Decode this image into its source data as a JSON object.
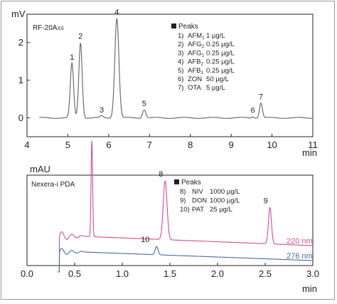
{
  "chart_data": [
    {
      "type": "line",
      "detector": "RF-20A",
      "detector_subscript": "XS",
      "ylabel": "mV",
      "xlabel": "min",
      "xlim": [
        4,
        11
      ],
      "xticks": [
        4,
        5,
        6,
        7,
        8,
        9,
        10,
        11
      ],
      "ylim": [
        -0.5,
        2.75
      ],
      "yticks": [
        0,
        1,
        2
      ],
      "color": "#6d6d6d",
      "legend_title": "Peaks",
      "legend": [
        {
          "no": "1)",
          "name": "AFM",
          "sub": "1",
          "conc": "1 µg/L"
        },
        {
          "no": "2)",
          "name": "AFG",
          "sub": "2",
          "conc": "0.25 µg/L"
        },
        {
          "no": "3)",
          "name": "AFG",
          "sub": "1",
          "conc": "0.25 µg/L"
        },
        {
          "no": "4)",
          "name": "AFB",
          "sub": "2",
          "conc": "0.25 µg/L"
        },
        {
          "no": "5)",
          "name": "AFB",
          "sub": "1",
          "conc": "0.25 µg/L"
        },
        {
          "no": "6)",
          "name": "ZON",
          "sub": "",
          "conc": "50 µg/L"
        },
        {
          "no": "7)",
          "name": "OTA",
          "sub": "",
          "conc": "5 µg/L"
        }
      ],
      "peaks": [
        {
          "label": "1",
          "t": 5.1,
          "h": 1.45,
          "w": 0.04
        },
        {
          "label": "2",
          "t": 5.31,
          "h": 2.0,
          "w": 0.04
        },
        {
          "label": "3",
          "t": 5.83,
          "h": 0.05,
          "w": 0.035
        },
        {
          "label": "4",
          "t": 6.2,
          "h": 2.65,
          "w": 0.05
        },
        {
          "label": "5",
          "t": 6.87,
          "h": 0.22,
          "w": 0.04
        },
        {
          "label": "6",
          "t": 9.53,
          "h": 0.04,
          "w": 0.03
        },
        {
          "label": "7",
          "t": 9.73,
          "h": 0.4,
          "w": 0.035
        }
      ],
      "baseline": 0.0
    },
    {
      "type": "line",
      "detector": "Nexera-i PDA",
      "ylabel": "mAU",
      "xlabel": "min",
      "xlim": [
        0.0,
        3.0
      ],
      "xticks": [
        "0.0",
        "0.5",
        "1.0",
        "1.5",
        "2.0",
        "2.5",
        "3.0"
      ],
      "legend_title": "Peaks",
      "legend": [
        {
          "no": "8)",
          "name": "NIV",
          "conc": "1000 µg/L"
        },
        {
          "no": "9)",
          "name": "DON",
          "conc": "1000 µg/L"
        },
        {
          "no": "10)",
          "name": "PAT",
          "conc": "25 µg/L"
        }
      ],
      "series": [
        {
          "name": "220 nm",
          "color": "#d04e8c",
          "peaks": [
            {
              "t": 0.68,
              "h": 0.9,
              "w": 0.008
            },
            {
              "label": "8",
              "t": 1.45,
              "h": 0.55,
              "w": 0.02
            },
            {
              "label": "9",
              "t": 2.55,
              "h": 0.34,
              "w": 0.016
            }
          ]
        },
        {
          "name": "276 nm",
          "color": "#4d6a9a",
          "peaks": [
            {
              "label": "10",
              "t": 1.36,
              "h": 0.09,
              "w": 0.015
            }
          ]
        }
      ]
    }
  ]
}
